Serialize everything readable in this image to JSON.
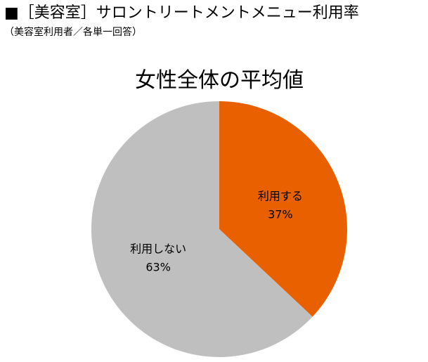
{
  "header": {
    "title": "■［美容室］サロントリートメントメニュー利用率",
    "subtitle": "（美容室利用者／各単一回答）"
  },
  "colors": {
    "use": "#E86000",
    "not_use": "#BFBFBF",
    "background": "#FFFFFF"
  },
  "chart_data": {
    "type": "pie",
    "title": "女性全体の平均値",
    "categories": [
      "利用する",
      "利用しない"
    ],
    "values": [
      37,
      63
    ],
    "value_labels": [
      "37%",
      "63%"
    ],
    "colors": [
      "#E86000",
      "#BFBFBF"
    ],
    "start": "12 o'clock",
    "direction": "clockwise",
    "legend": "none"
  }
}
